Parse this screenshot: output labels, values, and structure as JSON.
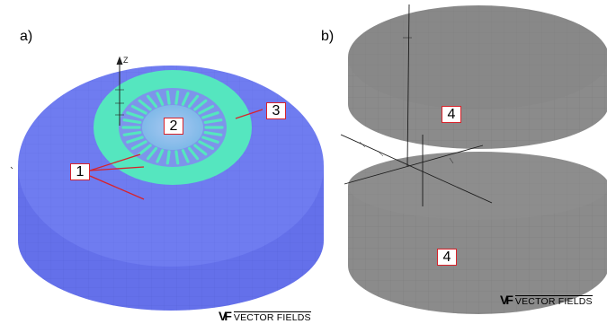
{
  "panels": {
    "a": {
      "letter": "a)",
      "labels": {
        "conductor": "1",
        "core": "2",
        "coil": "3"
      },
      "axis_label": "Z",
      "logo": {
        "mark": "VF",
        "text": "VECTOR FIELDS"
      }
    },
    "b": {
      "letter": "b)",
      "labels": {
        "upper_block": "4",
        "lower_block": "4"
      },
      "logo": {
        "mark": "VF",
        "text": "VECTOR FIELDS"
      }
    }
  },
  "colors": {
    "outer_region": "#6b78ef",
    "coil_ring": "#55e6bf",
    "core_center": "#8fb1ec",
    "slot": "#7f8fea",
    "block": "#8a8a8a",
    "callout_border": "#d8222a",
    "leader_line": "#d8222a"
  }
}
